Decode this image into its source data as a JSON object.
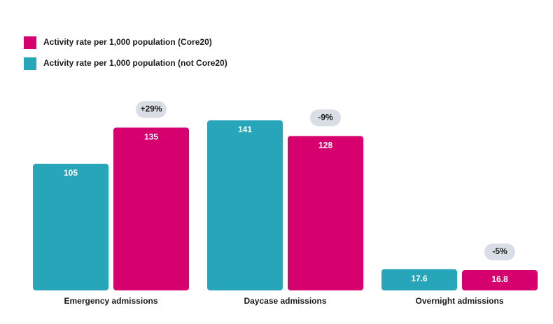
{
  "chart_data": {
    "type": "bar",
    "categories": [
      "Emergency admissions",
      "Daycase admissions",
      "Overnight admissions"
    ],
    "series": [
      {
        "name": "Activity rate per 1,000 population (Core20)",
        "color": "#d6006f",
        "values": [
          135,
          128,
          16.8
        ]
      },
      {
        "name": "Activity rate per 1,000 population (not Core20)",
        "color": "#26a6b8",
        "values": [
          105,
          141,
          17.6
        ]
      }
    ],
    "annotations": [
      "+29%",
      "-9%",
      "-5%"
    ]
  }
}
